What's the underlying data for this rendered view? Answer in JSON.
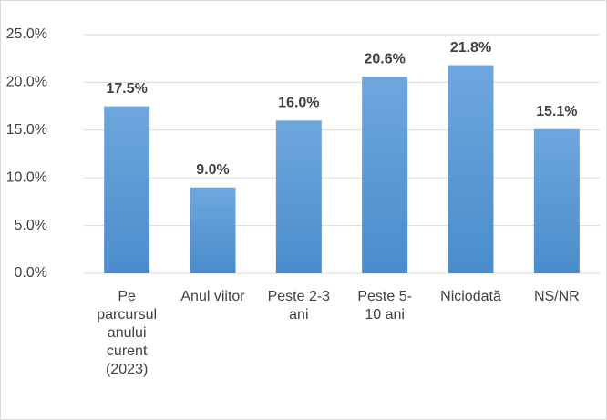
{
  "chart_data": {
    "type": "bar",
    "categories": [
      "Pe parcursul anului curent (2023)",
      "Anul viitor",
      "Peste 2-3 ani",
      "Peste 5-10 ani",
      "Niciodată",
      "NȘ/NR"
    ],
    "values": [
      17.5,
      9.0,
      16.0,
      20.6,
      21.8,
      15.1
    ],
    "value_labels": [
      "17.5%",
      "9.0%",
      "16.0%",
      "20.6%",
      "21.8%",
      "15.1%"
    ],
    "color": "#5b9bd5",
    "ylim": [
      0,
      25
    ],
    "yticks": [
      {
        "value": 0,
        "label": "0.0%"
      },
      {
        "value": 5,
        "label": "5.0%"
      },
      {
        "value": 10,
        "label": "10.0%"
      },
      {
        "value": 15,
        "label": "15.0%"
      },
      {
        "value": 20,
        "label": "20.0%"
      },
      {
        "value": 25,
        "label": "25.0%"
      }
    ],
    "grid": true
  }
}
